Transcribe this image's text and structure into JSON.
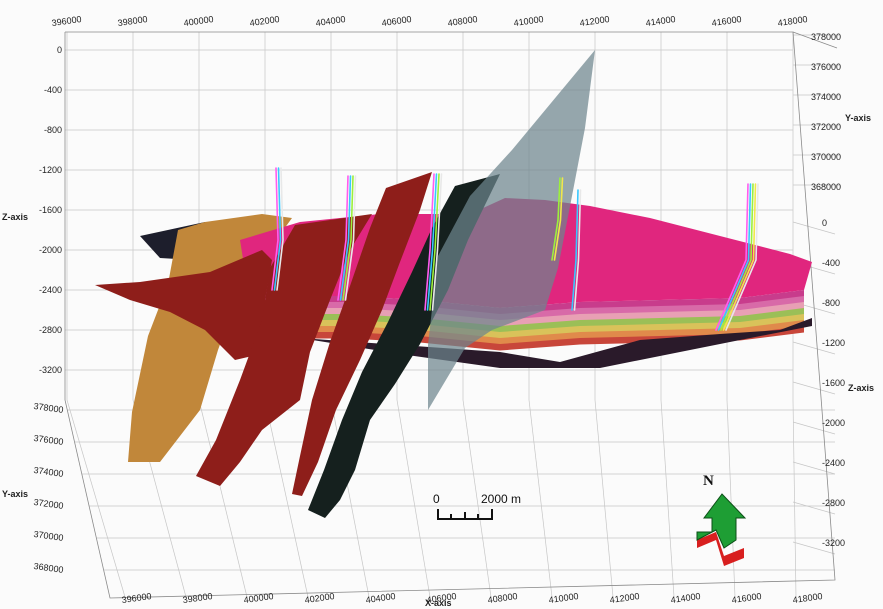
{
  "axes": {
    "x_title": "X-axis",
    "y_title_left": "Y-axis",
    "y_title_right": "Y-axis",
    "z_title_left": "Z-axis",
    "z_title_right": "Z-axis",
    "x_ticks_top": [
      "396000",
      "398000",
      "400000",
      "402000",
      "404000",
      "406000",
      "408000",
      "410000",
      "412000",
      "414000",
      "416000",
      "418000"
    ],
    "x_ticks_bottom": [
      "396000",
      "398000",
      "400000",
      "402000",
      "404000",
      "406000",
      "408000",
      "410000",
      "412000",
      "414000",
      "416000",
      "418000"
    ],
    "z_ticks_left": [
      "0",
      "-400",
      "-800",
      "-1200",
      "-1600",
      "-2000",
      "-2400",
      "-2800",
      "-3200"
    ],
    "y_ticks_left": [
      "378000",
      "376000",
      "374000",
      "372000",
      "370000",
      "368000"
    ],
    "y_ticks_right": [
      "378000",
      "376000",
      "374000",
      "372000",
      "370000",
      "368000"
    ],
    "z_ticks_right": [
      "0",
      "-400",
      "-800",
      "-1200",
      "-1600",
      "-2000",
      "-2400",
      "-2800",
      "-3200"
    ]
  },
  "scale_bar": {
    "start_label": "0",
    "end_label": "2000 m"
  },
  "compass": {
    "label": "N",
    "arrow_color": "#1e9e34",
    "base_color": "#d81f1f"
  },
  "colors": {
    "horizon_top": "#e0267e",
    "fault_orange": "#c1873a",
    "fault_red": "#8e1e1a",
    "fault_black": "#15201e",
    "fault_plane": "#6d858d",
    "layer_bands": [
      "#c83c8c",
      "#d86aa8",
      "#e8a0b4",
      "#9bbf57",
      "#d9c25a",
      "#e08a4b",
      "#c8463a"
    ]
  }
}
